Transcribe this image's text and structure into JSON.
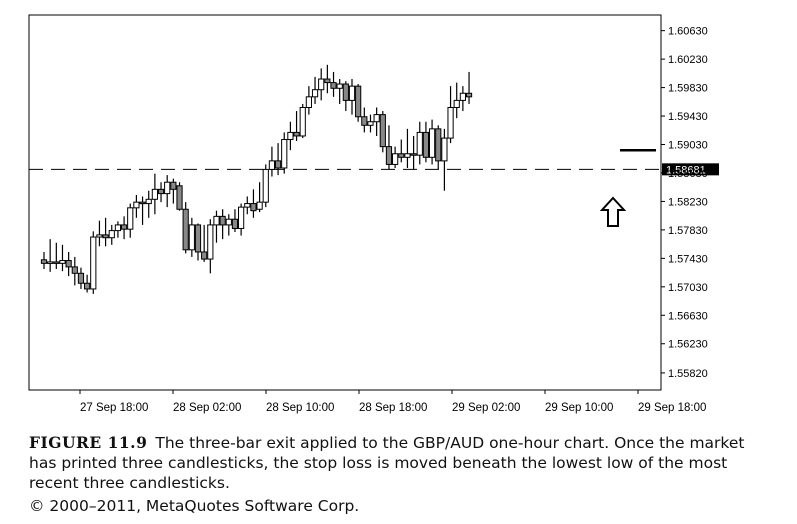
{
  "chart_data": {
    "type": "candlestick",
    "title": "",
    "x_tick_labels": [
      "27 Sep 18:00",
      "28 Sep 02:00",
      "28 Sep 10:00",
      "28 Sep 18:00",
      "29 Sep 02:00",
      "29 Sep 10:00",
      "29 Sep 18:00"
    ],
    "y_tick_labels": [
      "1.60630",
      "1.60230",
      "1.59830",
      "1.59430",
      "1.59030",
      "1.58630",
      "1.58230",
      "1.57830",
      "1.57430",
      "1.57030",
      "1.56630",
      "1.56230",
      "1.55820"
    ],
    "ylim": [
      1.5558,
      1.6085
    ],
    "level_line": {
      "value": 1.58681,
      "label": "1.58681",
      "style": "dashed"
    },
    "stop_loss_mark": 1.5895,
    "arrow_note": "up-arrow",
    "candles": [
      {
        "o": 1.5741,
        "h": 1.5752,
        "l": 1.5728,
        "c": 1.5736
      },
      {
        "o": 1.5736,
        "h": 1.577,
        "l": 1.5724,
        "c": 1.5738
      },
      {
        "o": 1.5738,
        "h": 1.5765,
        "l": 1.5728,
        "c": 1.5736
      },
      {
        "o": 1.5736,
        "h": 1.5762,
        "l": 1.5725,
        "c": 1.574
      },
      {
        "o": 1.574,
        "h": 1.5752,
        "l": 1.5718,
        "c": 1.5731
      },
      {
        "o": 1.5731,
        "h": 1.5745,
        "l": 1.5705,
        "c": 1.5722
      },
      {
        "o": 1.5722,
        "h": 1.573,
        "l": 1.57,
        "c": 1.5708
      },
      {
        "o": 1.5708,
        "h": 1.572,
        "l": 1.5695,
        "c": 1.57
      },
      {
        "o": 1.57,
        "h": 1.5781,
        "l": 1.5693,
        "c": 1.5773
      },
      {
        "o": 1.5773,
        "h": 1.5796,
        "l": 1.576,
        "c": 1.5776
      },
      {
        "o": 1.5776,
        "h": 1.58,
        "l": 1.576,
        "c": 1.5772
      },
      {
        "o": 1.5772,
        "h": 1.579,
        "l": 1.5762,
        "c": 1.5782
      },
      {
        "o": 1.5782,
        "h": 1.5795,
        "l": 1.5772,
        "c": 1.579
      },
      {
        "o": 1.579,
        "h": 1.5802,
        "l": 1.577,
        "c": 1.5784
      },
      {
        "o": 1.5784,
        "h": 1.582,
        "l": 1.5772,
        "c": 1.5814
      },
      {
        "o": 1.5814,
        "h": 1.5832,
        "l": 1.58,
        "c": 1.5822
      },
      {
        "o": 1.5822,
        "h": 1.583,
        "l": 1.579,
        "c": 1.582
      },
      {
        "o": 1.582,
        "h": 1.5838,
        "l": 1.58,
        "c": 1.5826
      },
      {
        "o": 1.5826,
        "h": 1.5862,
        "l": 1.5805,
        "c": 1.584
      },
      {
        "o": 1.584,
        "h": 1.585,
        "l": 1.5822,
        "c": 1.5834
      },
      {
        "o": 1.5834,
        "h": 1.586,
        "l": 1.5815,
        "c": 1.585
      },
      {
        "o": 1.585,
        "h": 1.5855,
        "l": 1.582,
        "c": 1.584
      },
      {
        "o": 1.5845,
        "h": 1.585,
        "l": 1.581,
        "c": 1.5812
      },
      {
        "o": 1.5812,
        "h": 1.5822,
        "l": 1.575,
        "c": 1.5755
      },
      {
        "o": 1.5755,
        "h": 1.58,
        "l": 1.5745,
        "c": 1.579
      },
      {
        "o": 1.579,
        "h": 1.5792,
        "l": 1.574,
        "c": 1.5752
      },
      {
        "o": 1.5752,
        "h": 1.579,
        "l": 1.5738,
        "c": 1.5742
      },
      {
        "o": 1.5742,
        "h": 1.5798,
        "l": 1.5722,
        "c": 1.579
      },
      {
        "o": 1.579,
        "h": 1.581,
        "l": 1.5765,
        "c": 1.5802
      },
      {
        "o": 1.5802,
        "h": 1.5812,
        "l": 1.577,
        "c": 1.579
      },
      {
        "o": 1.579,
        "h": 1.5805,
        "l": 1.5775,
        "c": 1.5798
      },
      {
        "o": 1.5798,
        "h": 1.5812,
        "l": 1.578,
        "c": 1.5785
      },
      {
        "o": 1.5785,
        "h": 1.582,
        "l": 1.5775,
        "c": 1.5815
      },
      {
        "o": 1.5815,
        "h": 1.583,
        "l": 1.5805,
        "c": 1.582
      },
      {
        "o": 1.582,
        "h": 1.584,
        "l": 1.58,
        "c": 1.581
      },
      {
        "o": 1.5812,
        "h": 1.585,
        "l": 1.5808,
        "c": 1.5822
      },
      {
        "o": 1.5822,
        "h": 1.5875,
        "l": 1.5815,
        "c": 1.5868
      },
      {
        "o": 1.5868,
        "h": 1.59,
        "l": 1.5858,
        "c": 1.588
      },
      {
        "o": 1.588,
        "h": 1.5905,
        "l": 1.586,
        "c": 1.587
      },
      {
        "o": 1.587,
        "h": 1.592,
        "l": 1.5862,
        "c": 1.591
      },
      {
        "o": 1.591,
        "h": 1.5935,
        "l": 1.5895,
        "c": 1.592
      },
      {
        "o": 1.592,
        "h": 1.595,
        "l": 1.5908,
        "c": 1.5915
      },
      {
        "o": 1.5915,
        "h": 1.596,
        "l": 1.5912,
        "c": 1.5955
      },
      {
        "o": 1.5955,
        "h": 1.5985,
        "l": 1.5945,
        "c": 1.597
      },
      {
        "o": 1.597,
        "h": 1.5998,
        "l": 1.596,
        "c": 1.598
      },
      {
        "o": 1.598,
        "h": 1.601,
        "l": 1.5965,
        "c": 1.5995
      },
      {
        "o": 1.5995,
        "h": 1.6015,
        "l": 1.5975,
        "c": 1.599
      },
      {
        "o": 1.599,
        "h": 1.6005,
        "l": 1.597,
        "c": 1.5982
      },
      {
        "o": 1.5982,
        "h": 1.5995,
        "l": 1.596,
        "c": 1.5988
      },
      {
        "o": 1.5988,
        "h": 1.5992,
        "l": 1.595,
        "c": 1.5965
      },
      {
        "o": 1.5965,
        "h": 1.5995,
        "l": 1.5945,
        "c": 1.5985
      },
      {
        "o": 1.5985,
        "h": 1.5988,
        "l": 1.5935,
        "c": 1.5942
      },
      {
        "o": 1.5942,
        "h": 1.5955,
        "l": 1.592,
        "c": 1.593
      },
      {
        "o": 1.593,
        "h": 1.5945,
        "l": 1.592,
        "c": 1.5935
      },
      {
        "o": 1.5935,
        "h": 1.5955,
        "l": 1.5915,
        "c": 1.5945
      },
      {
        "o": 1.5945,
        "h": 1.595,
        "l": 1.5892,
        "c": 1.59
      },
      {
        "o": 1.59,
        "h": 1.593,
        "l": 1.5868,
        "c": 1.5875
      },
      {
        "o": 1.5875,
        "h": 1.59,
        "l": 1.587,
        "c": 1.589
      },
      {
        "o": 1.589,
        "h": 1.591,
        "l": 1.5878,
        "c": 1.5885
      },
      {
        "o": 1.5885,
        "h": 1.5925,
        "l": 1.587,
        "c": 1.589
      },
      {
        "o": 1.589,
        "h": 1.5915,
        "l": 1.5868,
        "c": 1.5888
      },
      {
        "o": 1.5888,
        "h": 1.5935,
        "l": 1.5875,
        "c": 1.592
      },
      {
        "o": 1.592,
        "h": 1.5935,
        "l": 1.5878,
        "c": 1.5885
      },
      {
        "o": 1.5885,
        "h": 1.5938,
        "l": 1.5875,
        "c": 1.5925
      },
      {
        "o": 1.5925,
        "h": 1.593,
        "l": 1.5868,
        "c": 1.588
      },
      {
        "o": 1.588,
        "h": 1.5925,
        "l": 1.5838,
        "c": 1.5912
      },
      {
        "o": 1.5912,
        "h": 1.5985,
        "l": 1.5905,
        "c": 1.5955
      },
      {
        "o": 1.5955,
        "h": 1.599,
        "l": 1.594,
        "c": 1.5965
      },
      {
        "o": 1.5965,
        "h": 1.5985,
        "l": 1.595,
        "c": 1.5975
      },
      {
        "o": 1.5975,
        "h": 1.6005,
        "l": 1.596,
        "c": 1.597
      }
    ]
  },
  "caption": {
    "figure_label": "FIGURE 11.9",
    "text": "The three-bar exit applied to the GBP/AUD one-hour chart. Once the market has printed three candlesticks, the stop loss is moved beneath the lowest low of the most recent three candlesticks.",
    "copyright": "© 2000–2011, MetaQuotes Software Corp."
  }
}
